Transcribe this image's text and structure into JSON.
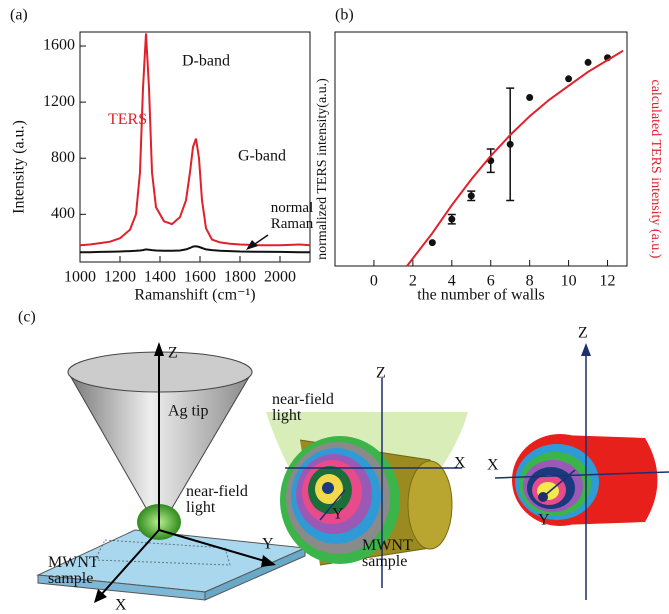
{
  "chart_data": [
    {
      "type": "line",
      "panel": "(a)",
      "xlabel": "Ramanshift (cm⁻¹)",
      "ylabel": "Intensity (a.u.)",
      "x": [
        1000,
        1050,
        1100,
        1150,
        1200,
        1250,
        1280,
        1300,
        1315,
        1330,
        1345,
        1360,
        1380,
        1420,
        1460,
        1500,
        1530,
        1550,
        1565,
        1580,
        1595,
        1610,
        1630,
        1660,
        1700,
        1750,
        1800,
        1900,
        2000,
        2100,
        2150
      ],
      "series": [
        {
          "name": "TERS",
          "color": "#e0202a",
          "values": [
            180,
            185,
            195,
            205,
            230,
            290,
            400,
            700,
            1300,
            1690,
            1300,
            700,
            450,
            350,
            330,
            380,
            500,
            700,
            880,
            940,
            800,
            500,
            300,
            220,
            200,
            190,
            185,
            180,
            180,
            185,
            180
          ]
        },
        {
          "name": "normal Raman",
          "color": "#111111",
          "values": [
            130,
            130,
            132,
            133,
            135,
            138,
            140,
            142,
            145,
            150,
            148,
            145,
            142,
            140,
            140,
            142,
            150,
            160,
            170,
            172,
            168,
            160,
            150,
            145,
            140,
            138,
            135,
            133,
            132,
            130,
            130
          ]
        }
      ],
      "annotations": [
        "D-band",
        "G-band"
      ],
      "xlim": [
        1000,
        2150
      ],
      "xticks": [
        1000,
        1200,
        1400,
        1600,
        1800,
        2000
      ],
      "ylim": [
        60,
        1700
      ],
      "yticks": [
        400,
        800,
        1200,
        1600
      ]
    },
    {
      "type": "scatter",
      "panel": "(b)",
      "xlabel": "the number of walls",
      "ylabel": "normalized TERS intensity(a.u.)",
      "y2label": "calculated TERS intensity (a.u.)",
      "series": [
        {
          "type": "scatter",
          "color": "#111111",
          "x": [
            3,
            4,
            5,
            6,
            7,
            8,
            10,
            11,
            12
          ],
          "values": [
            0.1,
            0.2,
            0.3,
            0.45,
            0.52,
            0.72,
            0.8,
            0.87,
            0.89
          ],
          "errors": [
            null,
            0.02,
            0.02,
            0.05,
            0.24,
            null,
            null,
            null,
            null
          ]
        },
        {
          "type": "line",
          "axis": "y2",
          "color": "#e0202a",
          "x": [
            1.7,
            3,
            4,
            5,
            6,
            7,
            8,
            9,
            10,
            11,
            12,
            12.8
          ],
          "values": [
            0,
            0.14,
            0.26,
            0.37,
            0.47,
            0.56,
            0.64,
            0.71,
            0.77,
            0.83,
            0.88,
            0.92
          ]
        }
      ],
      "xlim": [
        -2,
        13
      ],
      "xticks": [
        0,
        2,
        4,
        6,
        8,
        10,
        12
      ],
      "ylim": [
        0,
        1
      ],
      "y2lim": [
        0,
        1
      ]
    }
  ],
  "panel_c": {
    "label": "(c)",
    "left": {
      "z": "Z",
      "tip": "Ag tip",
      "near_field": "near-field light",
      "sample": "MWNT sample",
      "y": "Y",
      "x": "X"
    },
    "middle": {
      "z": "Z",
      "near_field": "near-field light",
      "x": "X",
      "y": "Y",
      "sample": "MWNT sample"
    },
    "right": {
      "z": "Z",
      "x": "X",
      "y": "Y"
    }
  }
}
